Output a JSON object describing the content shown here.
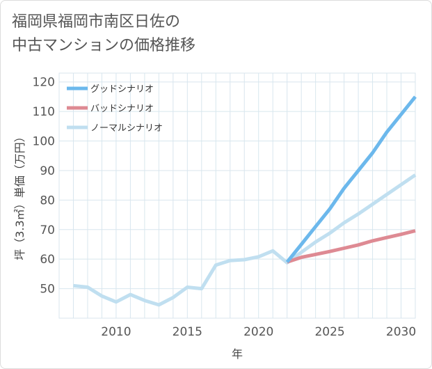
{
  "title_lines": [
    "福岡県福岡市南区日佐の",
    "中古マンションの価格推移"
  ],
  "chart_data": {
    "type": "line",
    "title": "福岡県福岡市南区日佐の中古マンションの価格推移",
    "xlabel": "年",
    "ylabel": "坪（3.3㎡）単価（万円）",
    "xlim": [
      2006,
      2031
    ],
    "ylim": [
      40,
      123
    ],
    "xticks": [
      2010,
      2015,
      2020,
      2025,
      2030
    ],
    "yticks": [
      50,
      60,
      70,
      80,
      90,
      100,
      110,
      120
    ],
    "grid": true,
    "legend_position": "top-left",
    "series": [
      {
        "name": "グッドシナリオ",
        "color": "#6cb8ec",
        "x": [
          2022,
          2023,
          2024,
          2025,
          2026,
          2027,
          2028,
          2029,
          2030,
          2031
        ],
        "values": [
          59,
          65,
          71,
          77,
          84,
          90,
          96,
          103,
          109,
          115
        ]
      },
      {
        "name": "バッドシナリオ",
        "color": "#de8a93",
        "x": [
          2022,
          2023,
          2024,
          2025,
          2026,
          2027,
          2028,
          2029,
          2030,
          2031
        ],
        "values": [
          59,
          60.6,
          61.6,
          62.6,
          63.7,
          64.8,
          66.2,
          67.3,
          68.4,
          69.6
        ]
      },
      {
        "name": "ノーマルシナリオ",
        "color": "#c0dff0",
        "x": [
          2007,
          2008,
          2009,
          2010,
          2011,
          2012,
          2013,
          2014,
          2015,
          2016,
          2017,
          2018,
          2019,
          2020,
          2021,
          2022,
          2023,
          2024,
          2025,
          2026,
          2027,
          2028,
          2029,
          2030,
          2031
        ],
        "values": [
          51,
          50.5,
          47.5,
          45.5,
          48,
          46,
          44.5,
          47,
          50.5,
          50,
          58,
          59.5,
          59.8,
          60.8,
          62.8,
          58.8,
          62.3,
          65.8,
          68.8,
          72.3,
          75.3,
          78.6,
          81.9,
          85.2,
          88.5
        ]
      }
    ]
  }
}
